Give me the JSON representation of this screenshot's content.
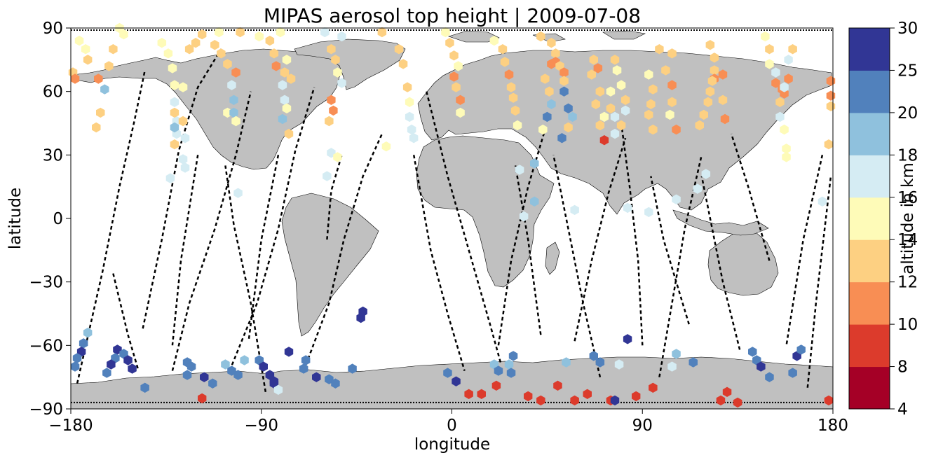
{
  "chart_data": {
    "type": "scatter",
    "title": "MIPAS aerosol top height | 2009-07-08",
    "xlabel": "longitude",
    "ylabel": "latitude",
    "xlim": [
      -180,
      180
    ],
    "ylim": [
      -90,
      90
    ],
    "xticks": [
      -180,
      -90,
      0,
      90,
      180
    ],
    "yticks": [
      -90,
      -60,
      -30,
      0,
      30,
      60,
      90
    ],
    "xtick_labels": [
      "−180",
      "−90",
      "0",
      "90",
      "180"
    ],
    "ytick_labels": [
      "−90",
      "−60",
      "−30",
      "0",
      "30",
      "60",
      "90"
    ],
    "grid": false,
    "land_color": "#c0c0c0",
    "track_color": "#000000",
    "colorbar": {
      "label": "altitude in km",
      "boundaries": [
        4,
        8,
        10,
        12,
        14,
        16,
        18,
        20,
        25,
        30
      ],
      "tick_labels": [
        "4",
        "8",
        "10",
        "12",
        "14",
        "16",
        "18",
        "20",
        "25",
        "30"
      ],
      "colors": [
        "#a50026",
        "#d73027",
        "#f46d43",
        "#fdae61",
        "#fee090",
        "#ffffbf",
        "#e0f3f8",
        "#abd9e9",
        "#74add1",
        "#4575b4",
        "#313695"
      ],
      "cmap_bins": [
        "#a50026",
        "#dc3b2c",
        "#f88e54",
        "#fdd082",
        "#fefbb8",
        "#d5ecf3",
        "#8fc1dd",
        "#5181bc",
        "#313695"
      ]
    },
    "points": [
      [
        -179,
        69,
        12
      ],
      [
        -178,
        66,
        11
      ],
      [
        -176,
        84,
        15
      ],
      [
        -173,
        80,
        15
      ],
      [
        -172,
        75,
        13
      ],
      [
        -167,
        66,
        11
      ],
      [
        -164,
        61,
        19
      ],
      [
        -166,
        50,
        13
      ],
      [
        -168,
        43,
        13
      ],
      [
        -162,
        72,
        13
      ],
      [
        -160,
        80,
        13
      ],
      [
        -155,
        87,
        15
      ],
      [
        -157,
        90,
        15
      ],
      [
        -137,
        83,
        15
      ],
      [
        -134,
        78,
        15
      ],
      [
        -132,
        71,
        15
      ],
      [
        -131,
        63,
        15
      ],
      [
        -131,
        55,
        16
      ],
      [
        -130,
        46,
        17
      ],
      [
        -130,
        40,
        17
      ],
      [
        -131,
        35,
        13
      ],
      [
        -131,
        50,
        13
      ],
      [
        -127,
        46,
        13
      ],
      [
        -126,
        38,
        16
      ],
      [
        -127,
        28,
        17
      ],
      [
        -126,
        24,
        17
      ],
      [
        -133,
        19,
        17
      ],
      [
        -131,
        43,
        19
      ],
      [
        -127,
        62,
        15
      ],
      [
        -124,
        80,
        13
      ],
      [
        -121,
        83,
        13
      ],
      [
        -118,
        87,
        13
      ],
      [
        -110,
        88,
        15
      ],
      [
        -100,
        88,
        13
      ],
      [
        -112,
        82,
        13
      ],
      [
        -109,
        78,
        13
      ],
      [
        -106,
        73,
        13
      ],
      [
        -102,
        69,
        11
      ],
      [
        -104,
        63,
        16
      ],
      [
        -103,
        56,
        18
      ],
      [
        -106,
        50,
        15
      ],
      [
        -103,
        50,
        19
      ],
      [
        -102,
        46,
        15
      ],
      [
        -101,
        12,
        16
      ],
      [
        -91,
        86,
        15
      ],
      [
        -86,
        84,
        13
      ],
      [
        -84,
        78,
        13
      ],
      [
        -83,
        72,
        11
      ],
      [
        -79,
        69,
        13
      ],
      [
        -80,
        63,
        16
      ],
      [
        -79,
        56,
        16
      ],
      [
        -80,
        47,
        19
      ],
      [
        -77,
        40,
        13
      ],
      [
        -78,
        52,
        15
      ],
      [
        -76,
        66,
        13
      ],
      [
        -78,
        75,
        15
      ],
      [
        -81,
        88,
        15
      ],
      [
        -60,
        88,
        16
      ],
      [
        -52,
        86,
        17
      ],
      [
        -57,
        80,
        13
      ],
      [
        -55,
        75,
        13
      ],
      [
        -54,
        69,
        15
      ],
      [
        -52,
        64,
        16
      ],
      [
        -57,
        56,
        11
      ],
      [
        -56,
        51,
        10
      ],
      [
        -58,
        46,
        13
      ],
      [
        -57,
        31,
        17
      ],
      [
        -59,
        20,
        16
      ],
      [
        -54,
        29,
        15
      ],
      [
        -33,
        88,
        13
      ],
      [
        -25,
        80,
        13
      ],
      [
        -23,
        73,
        13
      ],
      [
        -21,
        62,
        13
      ],
      [
        -20,
        55,
        15
      ],
      [
        -20,
        48,
        16
      ],
      [
        -19,
        42,
        17
      ],
      [
        -18,
        38,
        16
      ],
      [
        -31,
        34,
        15
      ],
      [
        -3,
        88,
        15
      ],
      [
        -1,
        83,
        13
      ],
      [
        1,
        77,
        13
      ],
      [
        1,
        67,
        10
      ],
      [
        4,
        56,
        11
      ],
      [
        4,
        50,
        15
      ],
      [
        2,
        62,
        12
      ],
      [
        3,
        72,
        15
      ],
      [
        20,
        84,
        15
      ],
      [
        24,
        80,
        13
      ],
      [
        25,
        74,
        12
      ],
      [
        27,
        68,
        11
      ],
      [
        28,
        62,
        13
      ],
      [
        29,
        57,
        12
      ],
      [
        30,
        51,
        13
      ],
      [
        31,
        44,
        15
      ],
      [
        32,
        23,
        17
      ],
      [
        39,
        26,
        18
      ],
      [
        39,
        8,
        18
      ],
      [
        34,
        1,
        16
      ],
      [
        42,
        86,
        13
      ],
      [
        47,
        83,
        13
      ],
      [
        49,
        78,
        13
      ],
      [
        47,
        73,
        11
      ],
      [
        44,
        66,
        12
      ],
      [
        46,
        60,
        13
      ],
      [
        47,
        54,
        19
      ],
      [
        45,
        48,
        20
      ],
      [
        43,
        42,
        15
      ],
      [
        49,
        74,
        10
      ],
      [
        51,
        72,
        12
      ],
      [
        53,
        69,
        11
      ],
      [
        53,
        65,
        13
      ],
      [
        53,
        60,
        23
      ],
      [
        55,
        52,
        23
      ],
      [
        57,
        48,
        18
      ],
      [
        55,
        43,
        12
      ],
      [
        52,
        38,
        20
      ],
      [
        58,
        4,
        17
      ],
      [
        67,
        75,
        12
      ],
      [
        69,
        71,
        10
      ],
      [
        66,
        68,
        13
      ],
      [
        70,
        60,
        13
      ],
      [
        68,
        54,
        13
      ],
      [
        72,
        48,
        15
      ],
      [
        70,
        44,
        13
      ],
      [
        72,
        37,
        8
      ],
      [
        75,
        60,
        15
      ],
      [
        75,
        52,
        13
      ],
      [
        77,
        48,
        16
      ],
      [
        77,
        40,
        16
      ],
      [
        77,
        75,
        13
      ],
      [
        78,
        70,
        15
      ],
      [
        80,
        63,
        15
      ],
      [
        82,
        56,
        13
      ],
      [
        82,
        51,
        16
      ],
      [
        80,
        44,
        13
      ],
      [
        83,
        5,
        17
      ],
      [
        93,
        68,
        15
      ],
      [
        95,
        61,
        12
      ],
      [
        94,
        54,
        13
      ],
      [
        93,
        49,
        13
      ],
      [
        95,
        42,
        13
      ],
      [
        93,
        3,
        17
      ],
      [
        98,
        80,
        13
      ],
      [
        101,
        70,
        13
      ],
      [
        104,
        63,
        11
      ],
      [
        104,
        55,
        13
      ],
      [
        106,
        42,
        10
      ],
      [
        103,
        49,
        15
      ],
      [
        106,
        9,
        17
      ],
      [
        104,
        78,
        13
      ],
      [
        122,
        82,
        13
      ],
      [
        124,
        76,
        13
      ],
      [
        124,
        70,
        13
      ],
      [
        124,
        66,
        10
      ],
      [
        122,
        60,
        12
      ],
      [
        121,
        55,
        12
      ],
      [
        119,
        49,
        13
      ],
      [
        117,
        44,
        13
      ],
      [
        120,
        21,
        17
      ],
      [
        116,
        14,
        17
      ],
      [
        123,
        65,
        12
      ],
      [
        128,
        68,
        10
      ],
      [
        128,
        56,
        13
      ],
      [
        129,
        47,
        11
      ],
      [
        148,
        86,
        15
      ],
      [
        150,
        80,
        13
      ],
      [
        150,
        73,
        15
      ],
      [
        153,
        69,
        16
      ],
      [
        153,
        64,
        11
      ],
      [
        156,
        61,
        10
      ],
      [
        157,
        59,
        10
      ],
      [
        159,
        66,
        10
      ],
      [
        161,
        80,
        13
      ],
      [
        159,
        75,
        17
      ],
      [
        157,
        62,
        16
      ],
      [
        155,
        55,
        13
      ],
      [
        157,
        42,
        15
      ],
      [
        158,
        33,
        15
      ],
      [
        158,
        29,
        15
      ],
      [
        155,
        48,
        16
      ],
      [
        175,
        8,
        17
      ],
      [
        179,
        65,
        11
      ],
      [
        179,
        58,
        11
      ],
      [
        179,
        53,
        12
      ],
      [
        178,
        35,
        13
      ],
      [
        -172,
        -54,
        18
      ],
      [
        -174,
        -59,
        20
      ],
      [
        -175,
        -63,
        25
      ],
      [
        -177,
        -66,
        20
      ],
      [
        -178,
        -70,
        20
      ],
      [
        -158,
        -62,
        25
      ],
      [
        -155,
        -64,
        20
      ],
      [
        -153,
        -67,
        25
      ],
      [
        -151,
        -71,
        25
      ],
      [
        -159,
        -66,
        20
      ],
      [
        -161,
        -69,
        25
      ],
      [
        -163,
        -73,
        20
      ],
      [
        -145,
        -80,
        20
      ],
      [
        -125,
        -68,
        20
      ],
      [
        -123,
        -70,
        20
      ],
      [
        -125,
        -74,
        20
      ],
      [
        -117,
        -75,
        25
      ],
      [
        -113,
        -78,
        20
      ],
      [
        -118,
        -85,
        8
      ],
      [
        -107,
        -69,
        18
      ],
      [
        -104,
        -72,
        20
      ],
      [
        -101,
        -74,
        20
      ],
      [
        -98,
        -67,
        18
      ],
      [
        -91,
        -67,
        20
      ],
      [
        -89,
        -70,
        25
      ],
      [
        -86,
        -74,
        25
      ],
      [
        -84,
        -78,
        25
      ],
      [
        -82,
        -81,
        17
      ],
      [
        -84,
        -77,
        25
      ],
      [
        -69,
        -67,
        20
      ],
      [
        -70,
        -71,
        20
      ],
      [
        -64,
        -75,
        25
      ],
      [
        -58,
        -76,
        20
      ],
      [
        -55,
        -78,
        20
      ],
      [
        -47,
        -71,
        20
      ],
      [
        -42,
        -44,
        25
      ],
      [
        -43,
        -47,
        25
      ],
      [
        -77,
        -63,
        25
      ],
      [
        -2,
        -73,
        20
      ],
      [
        2,
        -77,
        25
      ],
      [
        8,
        -83,
        8
      ],
      [
        14,
        -83,
        8
      ],
      [
        21,
        -79,
        8
      ],
      [
        20,
        -69,
        18
      ],
      [
        22,
        -72,
        20
      ],
      [
        27,
        -69,
        18
      ],
      [
        28,
        -73,
        20
      ],
      [
        29,
        -65,
        20
      ],
      [
        36,
        -84,
        8
      ],
      [
        42,
        -86,
        8
      ],
      [
        50,
        -79,
        8
      ],
      [
        54,
        -68,
        18
      ],
      [
        58,
        -86,
        8
      ],
      [
        64,
        -83,
        8
      ],
      [
        67,
        -65,
        20
      ],
      [
        70,
        -68,
        20
      ],
      [
        75,
        -86,
        8
      ],
      [
        77,
        -86,
        25
      ],
      [
        83,
        -57,
        25
      ],
      [
        79,
        -69,
        16
      ],
      [
        87,
        -84,
        8
      ],
      [
        95,
        -80,
        8
      ],
      [
        104,
        -70,
        16
      ],
      [
        106,
        -64,
        18
      ],
      [
        114,
        -68,
        20
      ],
      [
        127,
        -86,
        8
      ],
      [
        130,
        -82,
        8
      ],
      [
        135,
        -87,
        8
      ],
      [
        142,
        -63,
        20
      ],
      [
        144,
        -67,
        20
      ],
      [
        146,
        -70,
        25
      ],
      [
        150,
        -75,
        20
      ],
      [
        161,
        -73,
        20
      ],
      [
        163,
        -65,
        25
      ],
      [
        165,
        -62,
        20
      ],
      [
        178,
        -86,
        8
      ]
    ]
  }
}
